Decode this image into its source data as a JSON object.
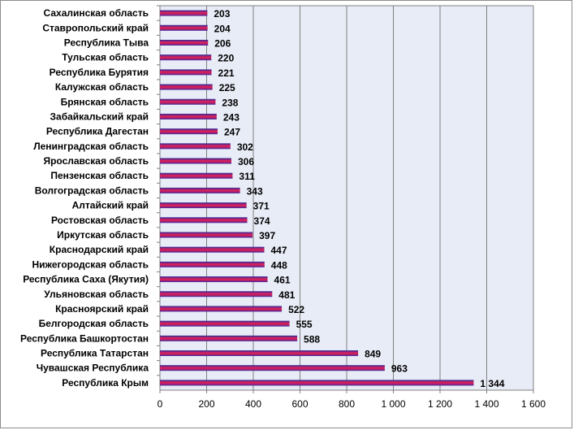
{
  "chart_data": {
    "type": "bar",
    "orientation": "horizontal",
    "categories": [
      "Сахалинская область",
      "Ставропольский край",
      "Республика Тыва",
      "Тульская область",
      "Республика Бурятия",
      "Калужская область",
      "Брянская область",
      "Забайкальский край",
      "Республика Дагестан",
      "Ленинградская область",
      "Ярославская область",
      "Пензенская область",
      "Волгоградская область",
      "Алтайский край",
      "Ростовская область",
      "Иркутская область",
      "Краснодарский край",
      "Нижегородская область",
      "Республика Саха (Якутия)",
      "Ульяновская область",
      "Красноярский край",
      "Белгородская область",
      "Республика Башкортостан",
      "Республика Татарстан",
      "Чувашская Республика",
      "Республика Крым"
    ],
    "values": [
      203,
      204,
      206,
      220,
      221,
      225,
      238,
      243,
      247,
      302,
      306,
      311,
      343,
      371,
      374,
      397,
      447,
      448,
      461,
      481,
      522,
      555,
      588,
      849,
      963,
      1344
    ],
    "value_labels": [
      "203",
      "204",
      "206",
      "220",
      "221",
      "225",
      "238",
      "243",
      "247",
      "302",
      "306",
      "311",
      "343",
      "371",
      "374",
      "397",
      "447",
      "448",
      "461",
      "481",
      "522",
      "555",
      "588",
      "849",
      "963",
      "1 344"
    ],
    "xlim": [
      0,
      1600
    ],
    "x_ticks": [
      0,
      200,
      400,
      600,
      800,
      1000,
      1200,
      1400,
      1600
    ],
    "x_tick_labels": [
      "0",
      "200",
      "400",
      "600",
      "800",
      "1 000",
      "1 200",
      "1 400",
      "1 600"
    ],
    "title": "",
    "xlabel": "",
    "ylabel": "",
    "grid": "vertical",
    "legend": "none",
    "colors": {
      "plot_background": "#e8ecf6",
      "grid": "#808080",
      "bar_top": "#d6204f",
      "bar_bottom": "#3d2ea6"
    }
  }
}
